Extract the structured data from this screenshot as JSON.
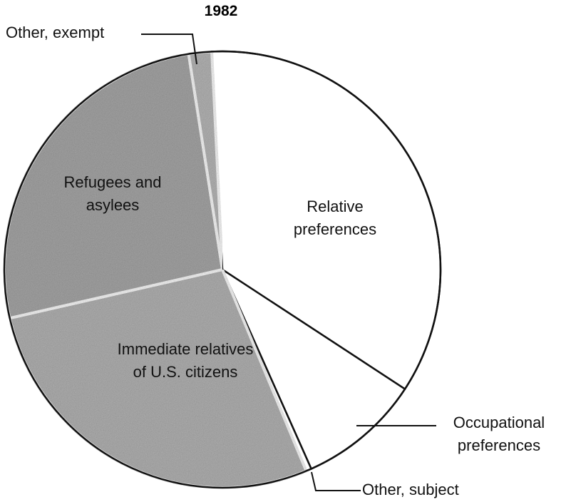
{
  "chart_data": {
    "type": "pie",
    "title": "1982",
    "categories": [
      "Relative preferences",
      "Occupational preferences",
      "Other, subject",
      "Immediate relatives of U.S. citizens",
      "Refugees and asylees",
      "Other, exempt"
    ],
    "values": [
      35.0,
      9.1,
      0.4,
      27.7,
      26.1,
      1.7
    ],
    "colors": [
      "#ffffff",
      "#ffffff",
      "#ffffff",
      "#b0b0b0",
      "#a4a4a4",
      "#b4b4b4"
    ]
  }
}
